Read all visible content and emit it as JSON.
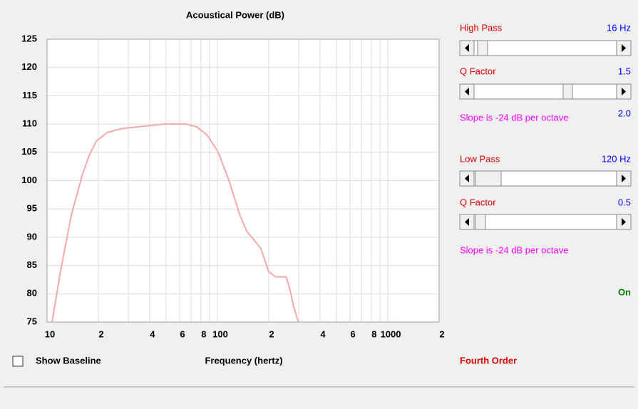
{
  "chart_data": {
    "type": "line",
    "title": "Acoustical Power (dB)",
    "xlabel": "Frequency (hertz)",
    "x": [
      10.7,
      12,
      13.9,
      16.1,
      17.7,
      19.5,
      22.5,
      27.3,
      36.5,
      48.9,
      65.4,
      75.6,
      87.4,
      101,
      117,
      135,
      149,
      164,
      180,
      199,
      219,
      253,
      265,
      279,
      298
    ],
    "series": [
      {
        "color": "#f4aaaa",
        "values": [
          75,
          84,
          94,
          101,
          104.5,
          107,
          108.5,
          109.2,
          109.6,
          110,
          110,
          109.5,
          108,
          105,
          100,
          94,
          91,
          89.5,
          88,
          84,
          83,
          83,
          81,
          78,
          75
        ]
      }
    ],
    "xlim": [
      10,
      2000
    ],
    "ylim": [
      75,
      125
    ],
    "xscale": "log",
    "xticks": [
      10,
      {
        "value": 20,
        "label": "2"
      },
      {
        "value": 30,
        "label": null
      },
      {
        "value": 40,
        "label": "4"
      },
      {
        "value": 50,
        "label": null
      },
      {
        "value": 60,
        "label": "6"
      },
      {
        "value": 70,
        "label": null
      },
      {
        "value": 80,
        "label": "8"
      },
      {
        "value": 90,
        "label": null
      },
      100,
      {
        "value": 200,
        "label": "2"
      },
      {
        "value": 300,
        "label": null
      },
      {
        "value": 400,
        "label": "4"
      },
      {
        "value": 500,
        "label": null
      },
      {
        "value": 600,
        "label": "6"
      },
      {
        "value": 700,
        "label": null
      },
      {
        "value": 800,
        "label": "8"
      },
      {
        "value": 900,
        "label": null
      },
      1000,
      {
        "value": 2000,
        "label": "2"
      }
    ],
    "yticks": [
      75,
      80,
      85,
      90,
      95,
      100,
      105,
      110,
      115,
      120,
      125
    ],
    "grid": true
  },
  "controls": {
    "high_pass": {
      "label": "High Pass",
      "value": "16 Hz"
    },
    "high_q": {
      "label": "Q Factor",
      "value": "1.5"
    },
    "high_slope": {
      "text": "Slope is -24 dB per octave",
      "value": "2.0"
    },
    "low_pass": {
      "label": "Low Pass",
      "value": "120 Hz"
    },
    "low_q": {
      "label": "Q Factor",
      "value": "0.5"
    },
    "low_slope": {
      "text": "Slope is -24 dB per octave"
    },
    "status": "On",
    "order": "Fourth Order",
    "baseline": "Show Baseline"
  }
}
